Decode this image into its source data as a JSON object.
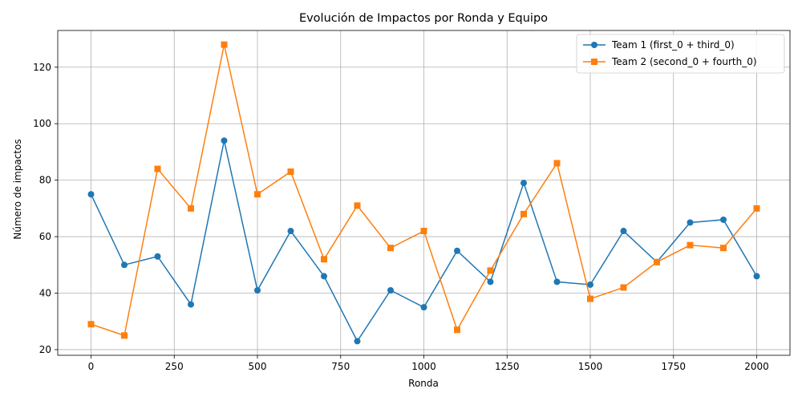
{
  "chart_data": {
    "type": "line",
    "title": "Evolución de Impactos por Ronda y Equipo",
    "xlabel": "Ronda",
    "ylabel": "Número de impactos",
    "x": [
      0,
      100,
      200,
      300,
      400,
      500,
      600,
      700,
      800,
      900,
      1000,
      1100,
      1200,
      1300,
      1400,
      1500,
      1600,
      1700,
      1800,
      1900,
      2000
    ],
    "xlim": [
      -100,
      2100
    ],
    "ylim": [
      18,
      133
    ],
    "xticks": [
      0,
      250,
      500,
      750,
      1000,
      1250,
      1500,
      1750,
      2000
    ],
    "yticks": [
      20,
      40,
      60,
      80,
      100,
      120
    ],
    "grid": true,
    "legend_position": "top-right",
    "series": [
      {
        "name": "Team 1 (first_0 + third_0)",
        "color": "#1f77b4",
        "marker": "circle",
        "values": [
          75,
          50,
          53,
          36,
          94,
          41,
          62,
          46,
          23,
          41,
          35,
          55,
          44,
          79,
          44,
          43,
          62,
          51,
          65,
          66,
          46
        ]
      },
      {
        "name": "Team 2 (second_0 + fourth_0)",
        "color": "#ff7f0e",
        "marker": "square",
        "values": [
          29,
          25,
          84,
          70,
          128,
          75,
          83,
          52,
          71,
          56,
          62,
          27,
          48,
          68,
          86,
          38,
          42,
          51,
          57,
          56,
          70
        ]
      }
    ]
  }
}
